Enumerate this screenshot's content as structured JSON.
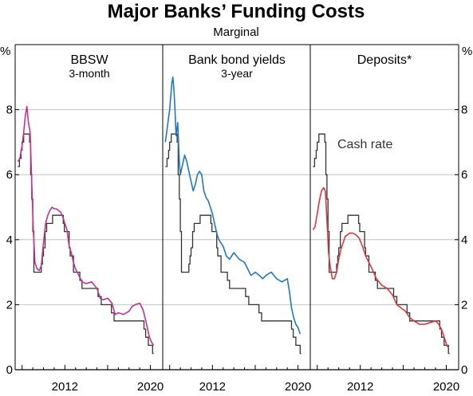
{
  "chart_data": {
    "type": "line",
    "title": "Major Banks’ Funding Costs",
    "subtitle": "Marginal",
    "y_unit_left": "%",
    "y_unit_right": "%",
    "ylim": [
      0,
      10
    ],
    "yticks": [
      "0",
      "2",
      "4",
      "6",
      "8"
    ],
    "xlim": [
      2007.5,
      2021.0
    ],
    "xticks": [
      "2012",
      "2020"
    ],
    "grid": true,
    "annotation": "Cash rate",
    "colors": {
      "cash_rate": "#333333",
      "bbsw": "#cc2f8f",
      "bank_bond": "#1f78c8",
      "deposits": "#e0373d"
    },
    "cash_rate": {
      "x": [
        2007.6,
        2007.75,
        2007.75,
        2007.9,
        2007.9,
        2008.0,
        2008.0,
        2008.15,
        2008.15,
        2008.7,
        2008.7,
        2008.8,
        2008.8,
        2008.9,
        2008.9,
        2009.0,
        2009.0,
        2009.1,
        2009.1,
        2009.8,
        2009.8,
        2009.9,
        2009.9,
        2010.0,
        2010.0,
        2010.15,
        2010.15,
        2010.3,
        2010.3,
        2010.85,
        2010.85,
        2011.85,
        2011.85,
        2011.95,
        2011.95,
        2012.4,
        2012.4,
        2012.5,
        2012.5,
        2012.8,
        2012.8,
        2013.4,
        2013.4,
        2013.6,
        2013.6,
        2015.1,
        2015.1,
        2015.4,
        2015.4,
        2016.35,
        2016.35,
        2016.6,
        2016.6,
        2019.4,
        2019.4,
        2019.55,
        2019.55,
        2019.8,
        2019.8,
        2020.2,
        2020.2,
        2020.3
      ],
      "y": [
        6.25,
        6.25,
        6.5,
        6.5,
        6.75,
        6.75,
        7.0,
        7.0,
        7.25,
        7.25,
        7.0,
        7.0,
        6.0,
        6.0,
        5.25,
        5.25,
        4.25,
        4.25,
        3.0,
        3.0,
        3.25,
        3.25,
        3.5,
        3.5,
        3.75,
        3.75,
        4.25,
        4.25,
        4.5,
        4.5,
        4.75,
        4.75,
        4.5,
        4.5,
        4.25,
        4.25,
        3.75,
        3.75,
        3.5,
        3.5,
        3.0,
        3.0,
        2.75,
        2.75,
        2.5,
        2.5,
        2.25,
        2.25,
        2.0,
        2.0,
        1.75,
        1.75,
        1.5,
        1.5,
        1.25,
        1.25,
        1.0,
        1.0,
        0.75,
        0.75,
        0.5,
        0.5
      ]
    },
    "series": [
      {
        "name": "BBSW",
        "note": "3-month",
        "x": [
          2007.6,
          2007.8,
          2008.0,
          2008.15,
          2008.3,
          2008.45,
          2008.6,
          2008.75,
          2008.85,
          2008.95,
          2009.05,
          2009.2,
          2009.4,
          2009.6,
          2009.8,
          2010.0,
          2010.2,
          2010.4,
          2010.6,
          2010.8,
          2011.0,
          2011.2,
          2011.4,
          2011.6,
          2011.8,
          2012.0,
          2012.2,
          2012.4,
          2012.6,
          2012.8,
          2013.0,
          2013.3,
          2013.6,
          2014.0,
          2014.5,
          2015.0,
          2015.3,
          2015.6,
          2016.0,
          2016.4,
          2016.7,
          2017.0,
          2017.5,
          2018.0,
          2018.3,
          2018.6,
          2019.0,
          2019.3,
          2019.5,
          2019.7,
          2019.9,
          2020.1,
          2020.3
        ],
        "y": [
          6.4,
          6.5,
          6.9,
          7.3,
          7.8,
          8.1,
          7.6,
          7.3,
          6.3,
          5.3,
          4.3,
          3.3,
          3.1,
          3.05,
          3.2,
          3.9,
          4.5,
          4.75,
          4.9,
          5.0,
          4.95,
          4.95,
          4.9,
          4.85,
          4.7,
          4.5,
          4.3,
          3.8,
          3.6,
          3.3,
          3.1,
          2.9,
          2.7,
          2.65,
          2.7,
          2.5,
          2.2,
          2.15,
          2.2,
          2.05,
          1.7,
          1.75,
          1.7,
          1.8,
          1.95,
          2.0,
          2.05,
          1.85,
          1.6,
          1.3,
          1.0,
          0.85,
          0.75
        ]
      },
      {
        "name": "Bank bond yields",
        "note": "3-year",
        "x": [
          2007.6,
          2007.8,
          2008.0,
          2008.2,
          2008.3,
          2008.4,
          2008.5,
          2008.6,
          2008.75,
          2008.9,
          2009.0,
          2009.2,
          2009.4,
          2009.6,
          2009.8,
          2010.0,
          2010.2,
          2010.4,
          2010.6,
          2010.8,
          2011.0,
          2011.2,
          2011.4,
          2011.6,
          2011.8,
          2012.0,
          2012.2,
          2012.4,
          2012.6,
          2012.8,
          2013.0,
          2013.3,
          2013.6,
          2014.0,
          2014.5,
          2015.0,
          2015.3,
          2015.6,
          2016.0,
          2016.4,
          2016.7,
          2017.0,
          2017.5,
          2018.0,
          2018.5,
          2019.0,
          2019.2,
          2019.4,
          2019.6,
          2019.8,
          2020.0,
          2020.2
        ],
        "y": [
          7.0,
          7.5,
          8.0,
          8.8,
          9.0,
          8.6,
          8.0,
          7.2,
          7.6,
          6.4,
          6.0,
          6.3,
          6.6,
          6.4,
          6.1,
          5.8,
          5.5,
          5.7,
          6.0,
          6.1,
          6.0,
          5.5,
          5.3,
          5.2,
          5.0,
          4.8,
          4.5,
          4.2,
          4.0,
          3.9,
          3.8,
          3.5,
          3.4,
          3.6,
          3.4,
          3.3,
          3.1,
          2.9,
          3.0,
          2.9,
          2.8,
          2.9,
          3.0,
          2.8,
          2.7,
          2.8,
          2.4,
          1.9,
          1.6,
          1.4,
          1.3,
          1.1
        ]
      },
      {
        "name": "Deposits*",
        "x": [
          2007.6,
          2007.8,
          2008.0,
          2008.2,
          2008.4,
          2008.6,
          2008.75,
          2008.9,
          2009.05,
          2009.2,
          2009.4,
          2009.6,
          2009.8,
          2010.0,
          2010.2,
          2010.4,
          2010.6,
          2010.8,
          2011.0,
          2011.3,
          2011.6,
          2011.9,
          2012.2,
          2012.5,
          2012.8,
          2013.1,
          2013.5,
          2014.0,
          2014.5,
          2015.0,
          2015.4,
          2015.8,
          2016.2,
          2016.6,
          2017.0,
          2017.5,
          2018.0,
          2018.5,
          2019.0,
          2019.3,
          2019.6,
          2019.9,
          2020.1
        ],
        "y": [
          4.3,
          4.4,
          4.8,
          5.2,
          5.5,
          5.6,
          5.5,
          4.6,
          3.6,
          3.2,
          2.8,
          2.8,
          3.0,
          3.4,
          3.7,
          3.9,
          4.1,
          4.15,
          4.2,
          4.2,
          4.15,
          4.05,
          3.8,
          3.5,
          3.3,
          3.1,
          2.8,
          2.6,
          2.5,
          2.3,
          2.0,
          1.9,
          1.8,
          1.6,
          1.5,
          1.4,
          1.4,
          1.45,
          1.5,
          1.4,
          1.2,
          0.9,
          0.7
        ]
      }
    ]
  }
}
